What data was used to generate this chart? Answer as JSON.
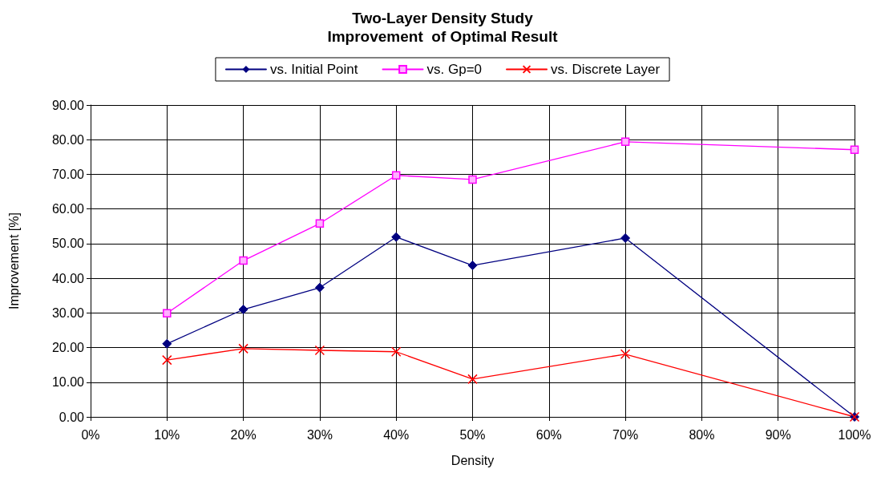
{
  "chart_data": {
    "type": "line",
    "title": "Two-Layer Density Study\nImprovement  of Optimal Result",
    "xlabel": "Density",
    "ylabel": "Improvement [%]",
    "x": [
      10,
      20,
      30,
      40,
      50,
      70,
      100
    ],
    "series": [
      {
        "name": "vs. Initial Point",
        "color": "#000080",
        "marker": "diamond",
        "values": [
          21.1,
          31.0,
          37.3,
          51.9,
          43.7,
          51.6,
          0
        ]
      },
      {
        "name": "vs. Gp=0",
        "color": "#ff00ff",
        "marker": "square",
        "values": [
          29.9,
          45.1,
          55.8,
          69.7,
          68.5,
          79.4,
          77.1
        ]
      },
      {
        "name": "vs. Discrete Layer",
        "color": "#ff0000",
        "marker": "cross",
        "values": [
          16.4,
          19.7,
          19.2,
          18.8,
          10.9,
          18.1,
          0
        ]
      }
    ],
    "xlim": [
      0,
      100
    ],
    "xticks": [
      {
        "value": 0,
        "label": "0%"
      },
      {
        "value": 10,
        "label": "10%"
      },
      {
        "value": 20,
        "label": "20%"
      },
      {
        "value": 30,
        "label": "30%"
      },
      {
        "value": 40,
        "label": "40%"
      },
      {
        "value": 50,
        "label": "50%"
      },
      {
        "value": 60,
        "label": "60%"
      },
      {
        "value": 70,
        "label": "70%"
      },
      {
        "value": 80,
        "label": "80%"
      },
      {
        "value": 90,
        "label": "90%"
      },
      {
        "value": 100,
        "label": "100%"
      }
    ],
    "ylim": [
      0,
      90
    ],
    "yticks": [
      {
        "value": 0,
        "label": "0.00"
      },
      {
        "value": 10,
        "label": "10.00"
      },
      {
        "value": 20,
        "label": "20.00"
      },
      {
        "value": 30,
        "label": "30.00"
      },
      {
        "value": 40,
        "label": "40.00"
      },
      {
        "value": 50,
        "label": "50.00"
      },
      {
        "value": 60,
        "label": "60.00"
      },
      {
        "value": 70,
        "label": "70.00"
      },
      {
        "value": 80,
        "label": "80.00"
      },
      {
        "value": 90,
        "label": "90.00"
      }
    ],
    "grid": true,
    "legend": "top",
    "line_style": "solid"
  }
}
